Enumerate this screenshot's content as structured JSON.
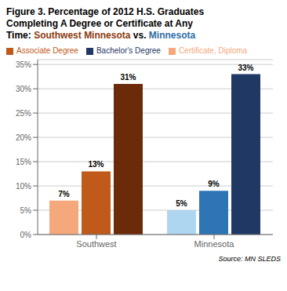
{
  "chart_data": {
    "type": "bar",
    "title": [
      [
        {
          "text": "Figure 3. Percentage of 2012 H.S. Graduates"
        }
      ],
      [
        {
          "text": "Completing A Degree or Certificate at Any"
        }
      ],
      [
        {
          "text": "Time: "
        },
        {
          "text": "Southwest Minnesota",
          "color": "#8B3A0F"
        },
        {
          "text": " vs. "
        },
        {
          "text": "Minnesota",
          "color": "#2E6DA4"
        }
      ]
    ],
    "categories": [
      "Southwest",
      "Minnesota"
    ],
    "series": [
      {
        "name": "Certificate, Diploma",
        "color": "#F4A87C",
        "colors": [
          "#F4A87C",
          "#AED6F1"
        ],
        "values": [
          7,
          5
        ],
        "value_labels": [
          "7%",
          "5%"
        ]
      },
      {
        "name": "Associate Degree",
        "color": "#C05A1A",
        "colors": [
          "#C05A1A",
          "#2E75B6"
        ],
        "values": [
          13,
          9
        ],
        "value_labels": [
          "13%",
          "9%"
        ]
      },
      {
        "name": "Bachelor's Degree",
        "color": "#1F3864",
        "colors": [
          "#6B2A0A",
          "#1F3864"
        ],
        "values": [
          31,
          33
        ],
        "value_labels": [
          "31%",
          "33%"
        ]
      }
    ],
    "ylim": [
      0,
      36
    ],
    "yticks": [
      {
        "value": 0,
        "label": "0%"
      },
      {
        "value": 5,
        "label": "5%"
      },
      {
        "value": 10,
        "label": "10%"
      },
      {
        "value": 15,
        "label": "15%"
      },
      {
        "value": 20,
        "label": "20%"
      },
      {
        "value": 25,
        "label": "25%"
      },
      {
        "value": 30,
        "label": "30%"
      },
      {
        "value": 35,
        "label": "35%"
      }
    ],
    "grid": true,
    "data_labels": true,
    "annotations": [
      {
        "text": "Source: MN SLEDS"
      }
    ]
  }
}
